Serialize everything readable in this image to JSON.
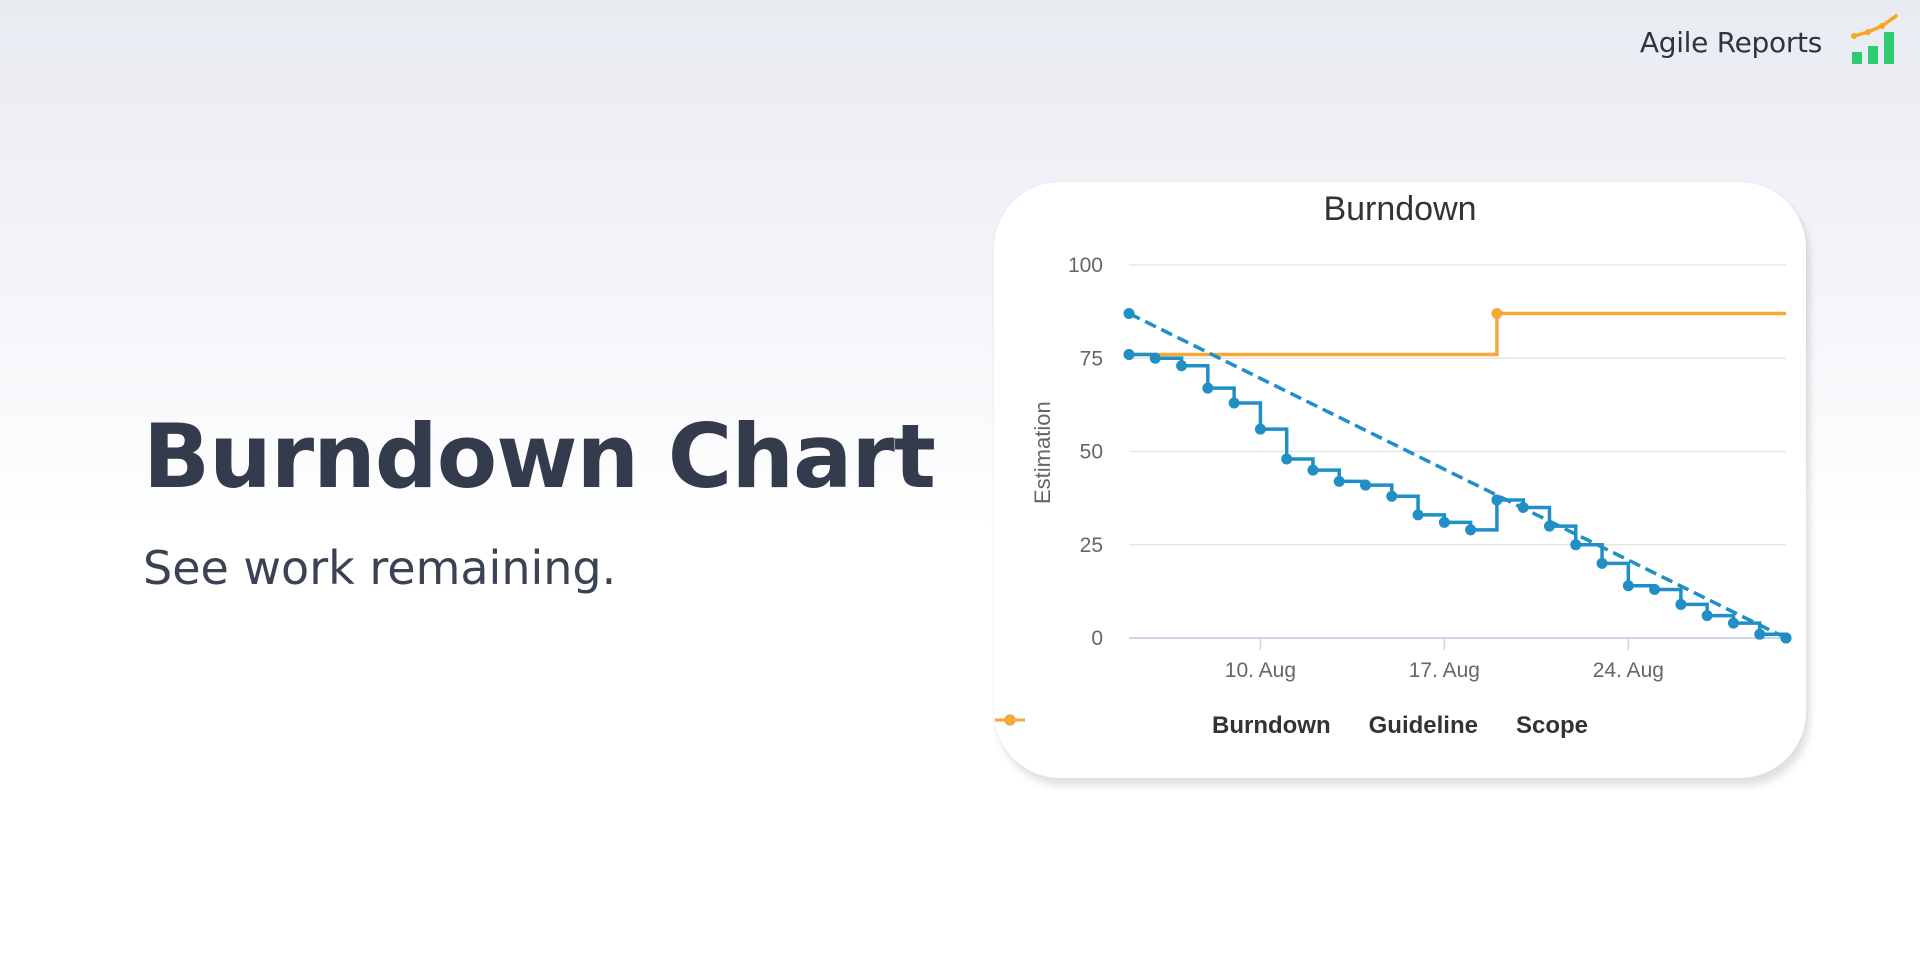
{
  "brand": {
    "name": "Agile Reports",
    "logo_icon": "chart-logo-icon",
    "logo_bar_color": "#2ecc71",
    "logo_line_color": "#f5a623"
  },
  "hero": {
    "title": "Burndown Chart",
    "subtitle": "See work remaining."
  },
  "chart_data": {
    "type": "line",
    "title": "Burndown",
    "ylabel": "Estimation",
    "xlabel": "",
    "ylim": [
      0,
      100
    ],
    "yticks": [
      0,
      25,
      50,
      75,
      100
    ],
    "x_axis": "date",
    "xlim": [
      "2024-08-05",
      "2024-08-30"
    ],
    "xticks": [
      {
        "date": "2024-08-10",
        "label": "10. Aug"
      },
      {
        "date": "2024-08-17",
        "label": "17. Aug"
      },
      {
        "date": "2024-08-24",
        "label": "24. Aug"
      }
    ],
    "grid": true,
    "legend_position": "bottom",
    "series": [
      {
        "name": "Burndown",
        "color": "#1f8fc6",
        "style": "step",
        "points": [
          [
            "2024-08-05",
            76
          ],
          [
            "2024-08-06",
            75
          ],
          [
            "2024-08-07",
            73
          ],
          [
            "2024-08-08",
            67
          ],
          [
            "2024-08-09",
            63
          ],
          [
            "2024-08-10",
            56
          ],
          [
            "2024-08-11",
            48
          ],
          [
            "2024-08-12",
            45
          ],
          [
            "2024-08-13",
            42
          ],
          [
            "2024-08-14",
            41
          ],
          [
            "2024-08-15",
            38
          ],
          [
            "2024-08-16",
            33
          ],
          [
            "2024-08-17",
            31
          ],
          [
            "2024-08-18",
            29
          ],
          [
            "2024-08-19",
            37
          ],
          [
            "2024-08-20",
            35
          ],
          [
            "2024-08-21",
            30
          ],
          [
            "2024-08-22",
            25
          ],
          [
            "2024-08-23",
            20
          ],
          [
            "2024-08-24",
            14
          ],
          [
            "2024-08-25",
            13
          ],
          [
            "2024-08-26",
            9
          ],
          [
            "2024-08-27",
            6
          ],
          [
            "2024-08-28",
            4
          ],
          [
            "2024-08-29",
            1
          ],
          [
            "2024-08-30",
            0
          ]
        ]
      },
      {
        "name": "Guideline",
        "color": "#1f8fc6",
        "style": "dashed",
        "points": [
          [
            "2024-08-05",
            87
          ],
          [
            "2024-08-30",
            0
          ]
        ]
      },
      {
        "name": "Scope",
        "color": "#f7a937",
        "style": "step",
        "points": [
          [
            "2024-08-05",
            76
          ],
          [
            "2024-08-19",
            87
          ],
          [
            "2024-08-30",
            87
          ]
        ]
      }
    ]
  }
}
